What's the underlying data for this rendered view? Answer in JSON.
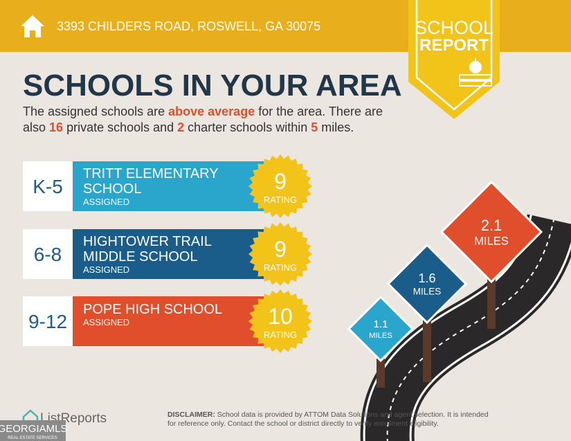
{
  "header": {
    "address": "3393 CHILDERS ROAD, ROSWELL, GA 30075"
  },
  "badge": {
    "line1": "SCHOOL",
    "line2": "REPORT"
  },
  "title": "SCHOOLS IN YOUR AREA",
  "intro": {
    "line1": [
      "The assigned schools are ",
      "above average",
      " for the area. There are"
    ],
    "line2": [
      "also ",
      "16",
      " private schools and ",
      "2",
      " charter schools within ",
      "5",
      " miles."
    ]
  },
  "schools": [
    {
      "grades": "K-5",
      "name_lines": [
        "TRITT ELEMENTARY",
        "SCHOOL"
      ],
      "status": "ASSIGNED",
      "rating": 9,
      "rating_label": "RATING"
    },
    {
      "grades": "6-8",
      "name_lines": [
        "HIGHTOWER TRAIL",
        "MIDDLE SCHOOL"
      ],
      "status": "ASSIGNED",
      "rating": 9,
      "rating_label": "RATING"
    },
    {
      "grades": "9-12",
      "name_lines": [
        "POPE HIGH SCHOOL"
      ],
      "status": "ASSIGNED",
      "rating": 10,
      "rating_label": "RATING"
    }
  ],
  "distances": [
    {
      "value": 2.1,
      "unit": "MILES"
    },
    {
      "value": 1.6,
      "unit": "MILES"
    },
    {
      "value": 1.1,
      "unit": "MILES"
    }
  ],
  "footer": {
    "brand": "ListReports",
    "disclaimer_label": "DISCLAIMER:",
    "disclaimer_lines": [
      " School data is provided by ATTOM Data Solutions and agent selection. It is intended",
      "for reference only. Contact the school or district directly to verify enrollment eligibility."
    ],
    "mls": "GEORGIAMLS",
    "mls_sub": "REAL ESTATE SERVICES"
  }
}
